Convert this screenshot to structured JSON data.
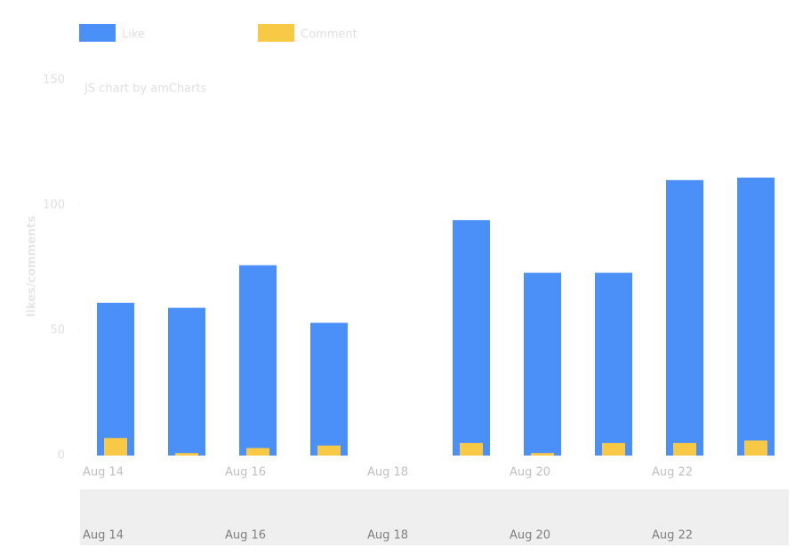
{
  "chart_data": {
    "type": "bar",
    "credit": "JS chart by amCharts",
    "y_label": "likes/comments",
    "categories": [
      "Aug 14",
      null,
      "Aug 16",
      null,
      "Aug 18",
      null,
      "Aug 20",
      null,
      "Aug 22",
      null
    ],
    "series": [
      {
        "name": "Like",
        "color": "#4a90f8",
        "values": [
          61,
          59,
          76,
          53,
          null,
          94,
          73,
          73,
          110,
          111
        ]
      },
      {
        "name": "Comment",
        "color": "#f8c945",
        "values": [
          7,
          1,
          3,
          4,
          null,
          5,
          1,
          5,
          5,
          6
        ]
      }
    ],
    "ylim": [
      0,
      150
    ],
    "yticks": [
      0,
      50,
      100,
      150
    ]
  }
}
